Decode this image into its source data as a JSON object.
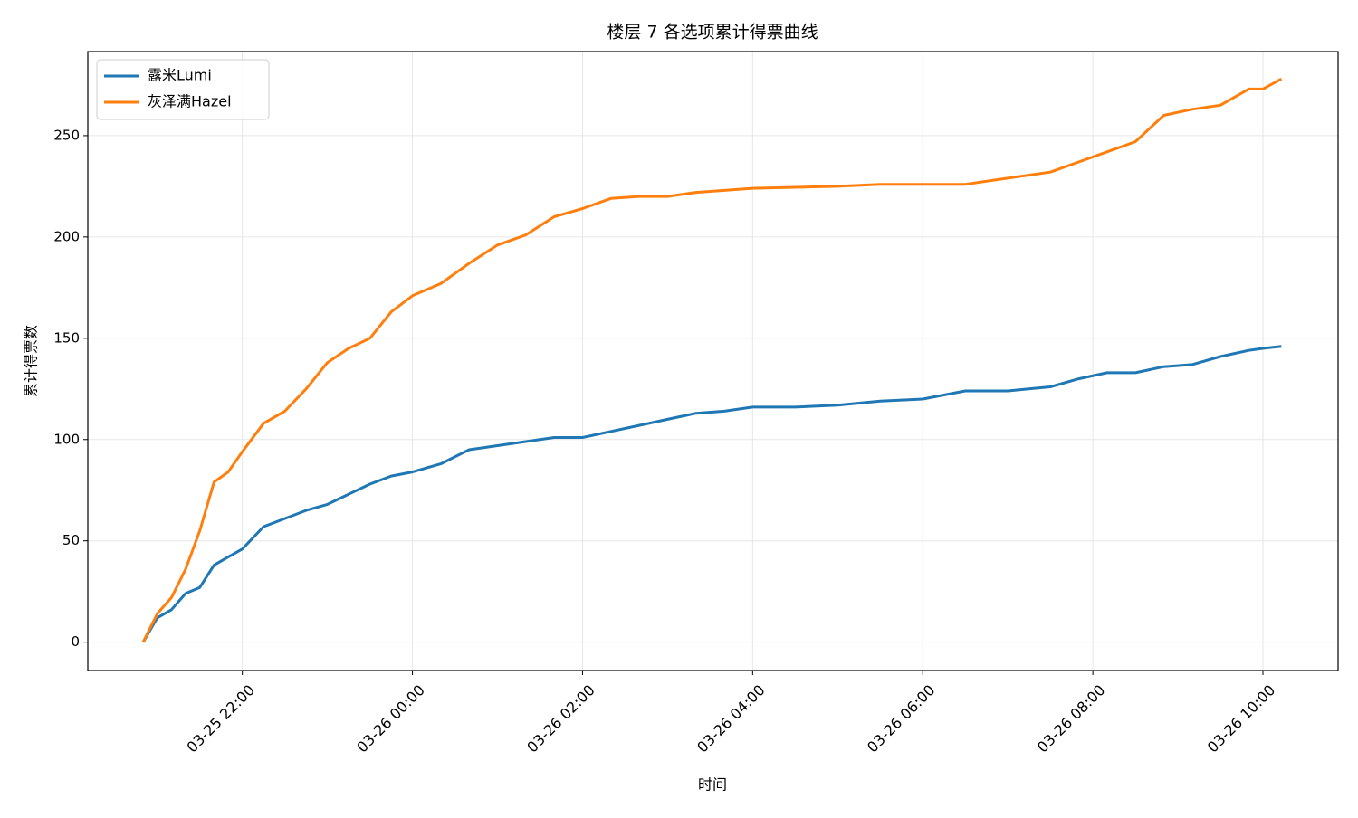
{
  "chart_data": {
    "type": "line",
    "title": "楼层 7 各选项累计得票曲线",
    "x_label": "时间",
    "y_label": "累计得票数",
    "x": [
      "03-25 20:50",
      "03-25 21:00",
      "03-25 21:10",
      "03-25 21:20",
      "03-25 21:30",
      "03-25 21:40",
      "03-25 21:50",
      "03-25 22:00",
      "03-25 22:15",
      "03-25 22:30",
      "03-25 22:45",
      "03-25 23:00",
      "03-25 23:15",
      "03-25 23:30",
      "03-25 23:45",
      "03-26 00:00",
      "03-26 00:20",
      "03-26 00:40",
      "03-26 01:00",
      "03-26 01:20",
      "03-26 01:40",
      "03-26 02:00",
      "03-26 02:20",
      "03-26 02:40",
      "03-26 03:00",
      "03-26 03:20",
      "03-26 03:40",
      "03-26 04:00",
      "03-26 04:30",
      "03-26 05:00",
      "03-26 05:30",
      "03-26 06:00",
      "03-26 06:30",
      "03-26 07:00",
      "03-26 07:30",
      "03-26 07:50",
      "03-26 08:10",
      "03-26 08:30",
      "03-26 08:50",
      "03-26 09:10",
      "03-26 09:30",
      "03-26 09:50",
      "03-26 10:00",
      "03-26 10:13"
    ],
    "series": [
      {
        "name": "露米Lumi",
        "color": "#1f77b4",
        "values": [
          0,
          12,
          16,
          24,
          27,
          38,
          42,
          46,
          57,
          61,
          65,
          68,
          73,
          78,
          82,
          84,
          88,
          95,
          97,
          99,
          101,
          101,
          104,
          107,
          110,
          113,
          114,
          116,
          116,
          117,
          119,
          120,
          124,
          124,
          126,
          130,
          133,
          133,
          136,
          137,
          141,
          144,
          145,
          146
        ]
      },
      {
        "name": "灰泽满Hazel",
        "color": "#ff7f0e",
        "values": [
          0,
          14,
          22,
          36,
          55,
          79,
          84,
          94,
          108,
          114,
          125,
          138,
          145,
          150,
          163,
          171,
          177,
          187,
          196,
          201,
          210,
          214,
          219,
          220,
          220,
          222,
          223,
          224,
          224.5,
          225,
          226,
          226,
          226,
          229,
          232,
          237,
          242,
          247,
          260,
          263,
          265,
          273,
          273,
          278
        ]
      }
    ],
    "xlim": [
      "03-25 20:11",
      "03-26 10:53"
    ],
    "xticks": [
      "03-25 22:00",
      "03-26 00:00",
      "03-26 02:00",
      "03-26 04:00",
      "03-26 06:00",
      "03-26 08:00",
      "03-26 10:00"
    ],
    "ylim": [
      -14,
      291.5
    ],
    "yticks": [
      0,
      50,
      100,
      150,
      200,
      250
    ],
    "grid": true,
    "legend": "upper left"
  }
}
